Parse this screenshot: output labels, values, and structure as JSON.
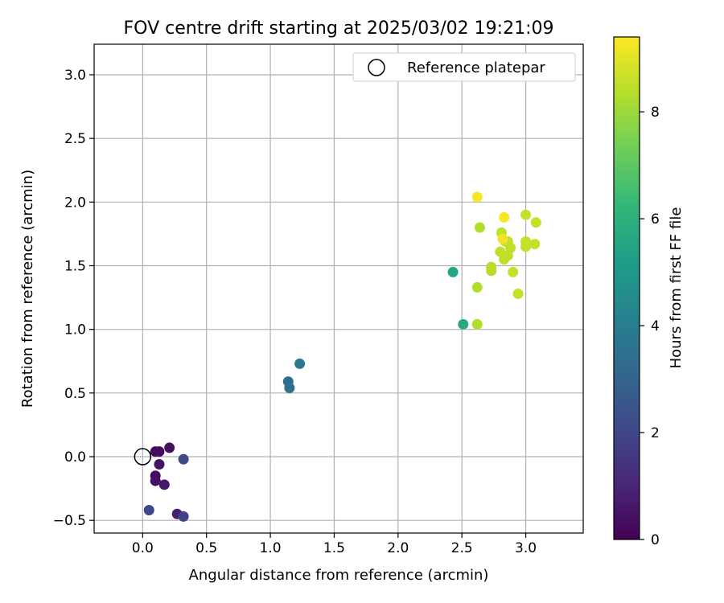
{
  "chart_data": {
    "type": "scatter",
    "title": "FOV centre drift starting at 2025/03/02 19:21:09",
    "xlabel": "Angular distance from reference (arcmin)",
    "ylabel": "Rotation from reference (arcmin)",
    "xlim": [
      -0.38,
      3.45
    ],
    "ylim": [
      -0.6,
      3.24
    ],
    "xticks": [
      0.0,
      0.5,
      1.0,
      1.5,
      2.0,
      2.5,
      3.0
    ],
    "xtick_labels": [
      "0.0",
      "0.5",
      "1.0",
      "1.5",
      "2.0",
      "2.5",
      "3.0"
    ],
    "yticks": [
      -0.5,
      0.0,
      0.5,
      1.0,
      1.5,
      2.0,
      2.5,
      3.0
    ],
    "ytick_labels": [
      "−0.5",
      "0.0",
      "0.5",
      "1.0",
      "1.5",
      "2.0",
      "2.5",
      "3.0"
    ],
    "grid": true,
    "legend": {
      "placement": "top-right",
      "entries": [
        "Reference platepar"
      ]
    },
    "reference_point": {
      "x": 0.0,
      "y": 0.0
    },
    "colorbar": {
      "label": "Hours from first FF file",
      "range": [
        0,
        9.4
      ],
      "ticks": [
        0,
        2,
        4,
        6,
        8
      ],
      "tick_labels": [
        "0",
        "2",
        "4",
        "6",
        "8"
      ],
      "colormap": [
        "#440154",
        "#482878",
        "#3e4a89",
        "#31688e",
        "#26828e",
        "#1f9e89",
        "#35b779",
        "#6ece58",
        "#b5de2b",
        "#fde725"
      ]
    },
    "points": [
      {
        "x": 0.1,
        "y": 0.04,
        "c": 0.2
      },
      {
        "x": 0.13,
        "y": 0.04,
        "c": 0.3
      },
      {
        "x": 0.21,
        "y": 0.07,
        "c": 0.4
      },
      {
        "x": 0.13,
        "y": -0.06,
        "c": 0.5
      },
      {
        "x": 0.1,
        "y": -0.15,
        "c": 0.3
      },
      {
        "x": 0.1,
        "y": -0.19,
        "c": 0.4
      },
      {
        "x": 0.17,
        "y": -0.22,
        "c": 0.6
      },
      {
        "x": 0.27,
        "y": -0.45,
        "c": 0.8
      },
      {
        "x": 0.32,
        "y": -0.47,
        "c": 1.9
      },
      {
        "x": 0.05,
        "y": -0.42,
        "c": 2.0
      },
      {
        "x": 0.32,
        "y": -0.02,
        "c": 2.1
      },
      {
        "x": 1.14,
        "y": 0.59,
        "c": 3.4
      },
      {
        "x": 1.15,
        "y": 0.54,
        "c": 3.5
      },
      {
        "x": 1.23,
        "y": 0.73,
        "c": 3.8
      },
      {
        "x": 2.43,
        "y": 1.45,
        "c": 5.5
      },
      {
        "x": 2.51,
        "y": 1.04,
        "c": 5.7
      },
      {
        "x": 2.62,
        "y": 1.04,
        "c": 8.3
      },
      {
        "x": 2.62,
        "y": 1.33,
        "c": 8.3
      },
      {
        "x": 2.64,
        "y": 1.8,
        "c": 8.3
      },
      {
        "x": 2.73,
        "y": 1.46,
        "c": 8.4
      },
      {
        "x": 2.73,
        "y": 1.49,
        "c": 8.4
      },
      {
        "x": 2.8,
        "y": 1.61,
        "c": 8.5
      },
      {
        "x": 2.81,
        "y": 1.76,
        "c": 8.5
      },
      {
        "x": 2.83,
        "y": 1.55,
        "c": 8.5
      },
      {
        "x": 2.84,
        "y": 1.69,
        "c": 8.5
      },
      {
        "x": 2.86,
        "y": 1.58,
        "c": 8.5
      },
      {
        "x": 2.86,
        "y": 1.69,
        "c": 8.5
      },
      {
        "x": 2.88,
        "y": 1.64,
        "c": 8.5
      },
      {
        "x": 2.9,
        "y": 1.45,
        "c": 8.6
      },
      {
        "x": 2.94,
        "y": 1.28,
        "c": 8.6
      },
      {
        "x": 3.0,
        "y": 1.65,
        "c": 8.6
      },
      {
        "x": 3.0,
        "y": 1.69,
        "c": 8.6
      },
      {
        "x": 3.0,
        "y": 1.9,
        "c": 8.6
      },
      {
        "x": 3.07,
        "y": 1.67,
        "c": 8.6
      },
      {
        "x": 3.08,
        "y": 1.84,
        "c": 8.6
      },
      {
        "x": 2.62,
        "y": 2.04,
        "c": 9.3
      },
      {
        "x": 2.83,
        "y": 1.88,
        "c": 9.3
      },
      {
        "x": 2.82,
        "y": 1.71,
        "c": 9.2
      }
    ]
  }
}
